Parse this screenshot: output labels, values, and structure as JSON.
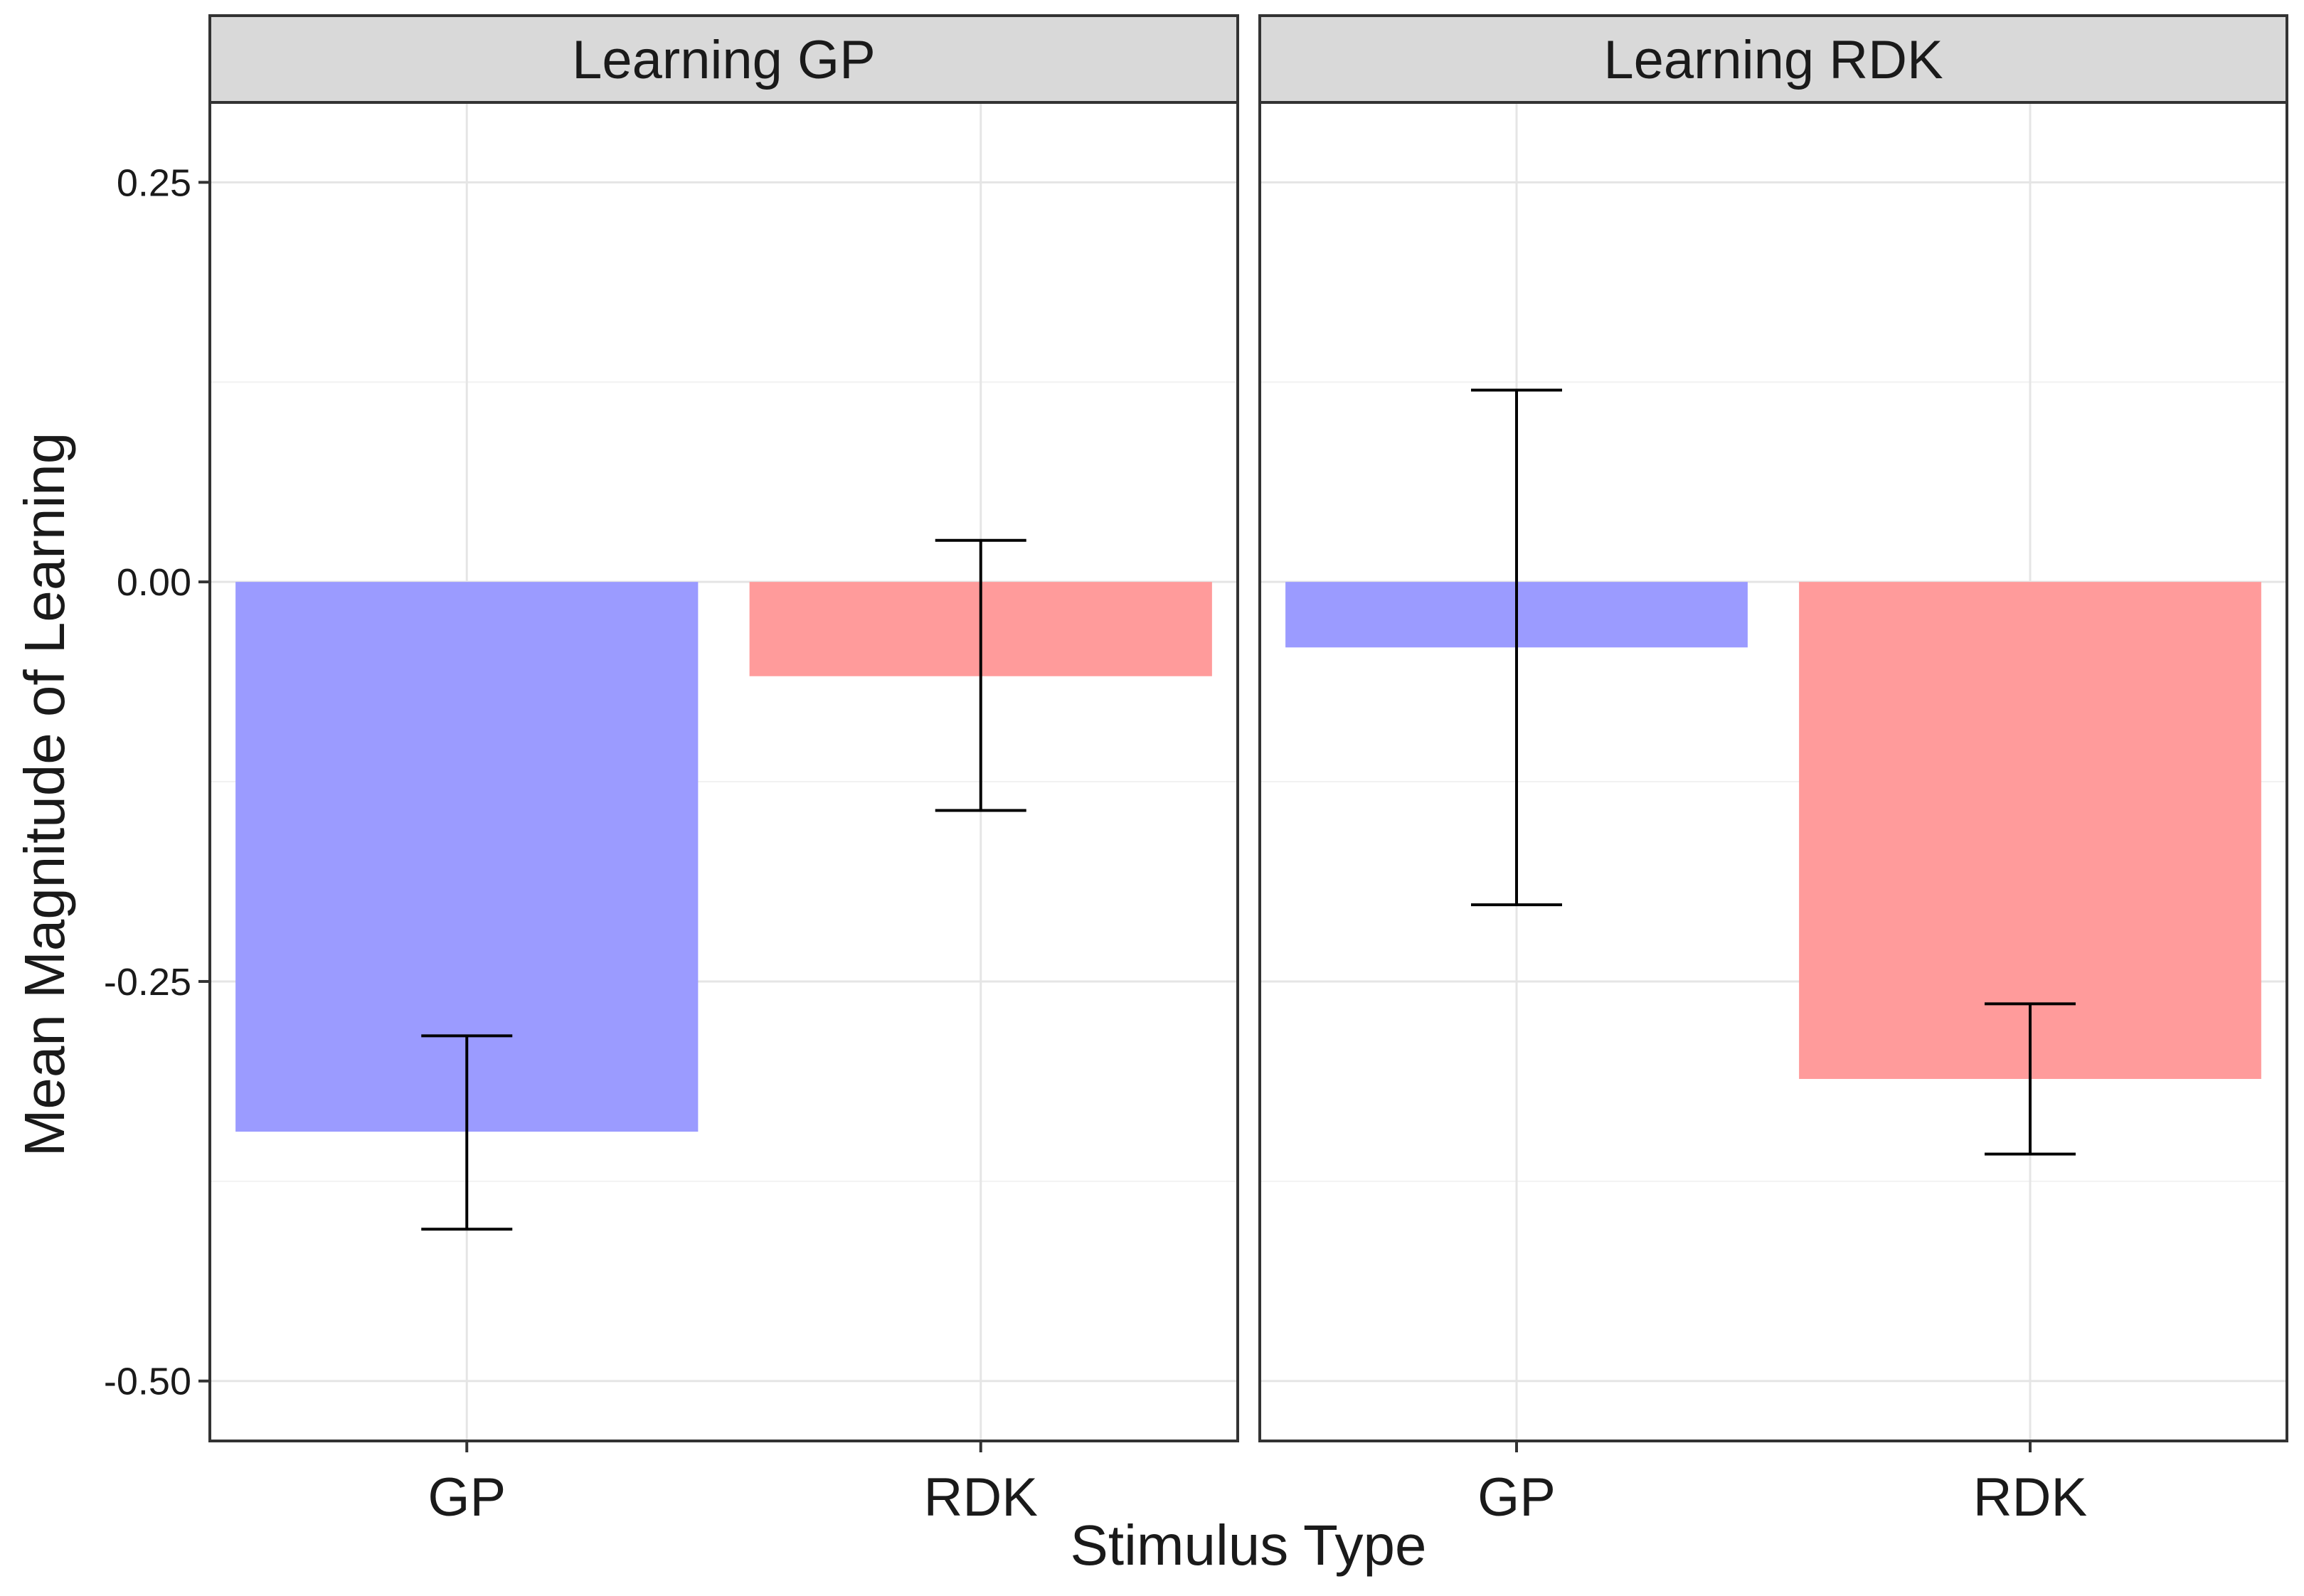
{
  "chart_data": {
    "type": "bar",
    "xlabel": "Stimulus Type",
    "ylabel": "Mean Magnitude of Learning",
    "ylim": [
      -0.5375,
      0.3
    ],
    "yticks": [
      "0.25",
      "0.00",
      "-0.25",
      "-0.50"
    ],
    "ytick_values": [
      0.25,
      0.0,
      -0.25,
      -0.5
    ],
    "categories": [
      "GP",
      "RDK"
    ],
    "grid": true,
    "legend": "none",
    "colors": {
      "GP": "#9999ff",
      "RDK": "#ff9999"
    },
    "facets": [
      {
        "title": "Learning GP",
        "bars": [
          {
            "category": "GP",
            "value": -0.344,
            "err_low": -0.405,
            "err_high": -0.284
          },
          {
            "category": "RDK",
            "value": -0.059,
            "err_low": -0.143,
            "err_high": 0.026
          }
        ]
      },
      {
        "title": "Learning RDK",
        "bars": [
          {
            "category": "GP",
            "value": -0.041,
            "err_low": -0.202,
            "err_high": 0.12
          },
          {
            "category": "RDK",
            "value": -0.311,
            "err_low": -0.358,
            "err_high": -0.264
          }
        ]
      }
    ]
  }
}
